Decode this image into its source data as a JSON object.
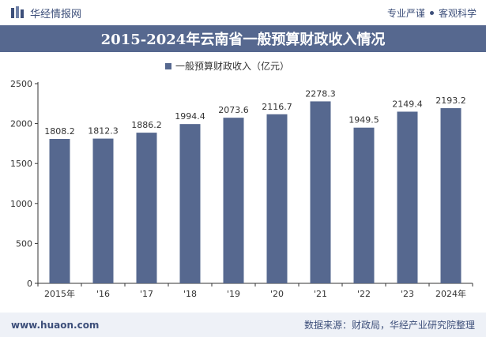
{
  "header": {
    "brand": "华经情报网",
    "tag_left": "专业严谨",
    "tag_right": "客观科学"
  },
  "title": "2015-2024年云南省一般预算财政收入情况",
  "footer": {
    "website": "www.huaon.com",
    "source": "数据来源：财政局，华经产业研究院整理"
  },
  "colors": {
    "bar": "#56688f",
    "header_band": "#56688f"
  },
  "chart_data": {
    "type": "bar",
    "categories": [
      "2015年",
      "'16",
      "'17",
      "'18",
      "'19",
      "'20",
      "'21",
      "'22",
      "'23",
      "2024年"
    ],
    "series": [
      {
        "name": "一般预算财政收入（亿元）",
        "values": [
          1808.2,
          1812.3,
          1886.2,
          1994.4,
          2073.6,
          2116.7,
          2278.3,
          1949.5,
          2149.4,
          2193.2
        ],
        "labels": [
          "1808.2",
          "1812.3",
          "1886.2",
          "1994.4",
          "2073.6",
          "2116.7",
          "2278.3",
          "1949.5",
          "2149.4",
          "2193.2"
        ]
      }
    ],
    "yticks": [
      "0",
      "500",
      "1000",
      "1500",
      "2000",
      "2500"
    ],
    "ylim": [
      0,
      2500
    ],
    "legend_position": "top-center",
    "grid": false
  }
}
